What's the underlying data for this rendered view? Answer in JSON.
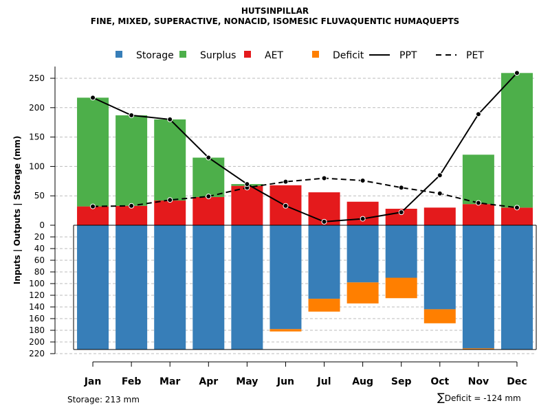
{
  "title": "HUTSINPILLAR",
  "subtitle": "FINE, MIXED, SUPERACTIVE, NONACID, ISOMESIC FLUVAQUENTIC HUMAQUEPTS",
  "storage_note": "Storage: 213 mm",
  "deficit_note": "Deficit = -124 mm",
  "deficit_symbol": "∑",
  "colors": {
    "storage": "#377EB8",
    "surplus": "#4DAF4A",
    "aet": "#E41A1C",
    "deficit": "#FF7F00",
    "grid": "#bbbbbb",
    "line": "#000000"
  },
  "chart_data": {
    "type": "bar",
    "title": "HUTSINPILLAR",
    "subtitle": "FINE, MIXED, SUPERACTIVE, NONACID, ISOMESIC FLUVAQUENTIC HUMAQUEPTS",
    "ylabel": "Inputs | Outputs | Storage    (mm)",
    "xlabel": "",
    "categories": [
      "Jan",
      "Feb",
      "Mar",
      "Apr",
      "May",
      "Jun",
      "Jul",
      "Aug",
      "Sep",
      "Oct",
      "Nov",
      "Dec"
    ],
    "upper_ylim": [
      0,
      270
    ],
    "upper_ticks": [
      0,
      50,
      100,
      150,
      200,
      250
    ],
    "lower_ylim": [
      0,
      220
    ],
    "lower_ticks": [
      20,
      40,
      60,
      80,
      100,
      120,
      140,
      160,
      180,
      200,
      220
    ],
    "legend": [
      {
        "label": "Storage",
        "kind": "box",
        "color": "#377EB8"
      },
      {
        "label": "Surplus",
        "kind": "box",
        "color": "#4DAF4A"
      },
      {
        "label": "AET",
        "kind": "box",
        "color": "#E41A1C"
      },
      {
        "label": "Deficit",
        "kind": "box",
        "color": "#FF7F00"
      },
      {
        "label": "PPT",
        "kind": "solid",
        "color": "#000000"
      },
      {
        "label": "PET",
        "kind": "dashed",
        "color": "#000000"
      }
    ],
    "series": [
      {
        "name": "AET",
        "values": [
          32,
          33,
          42,
          48,
          67,
          68,
          56,
          40,
          28,
          30,
          36,
          30
        ]
      },
      {
        "name": "Surplus",
        "values": [
          185,
          154,
          138,
          67,
          3,
          0,
          0,
          0,
          0,
          0,
          84,
          229
        ]
      },
      {
        "name": "Storage",
        "values": [
          213,
          213,
          213,
          213,
          213,
          178,
          126,
          98,
          90,
          144,
          211,
          213
        ]
      },
      {
        "name": "Deficit",
        "values": [
          0,
          0,
          0,
          0,
          0,
          4,
          22,
          36,
          35,
          24,
          2,
          0
        ]
      },
      {
        "name": "PPT",
        "values": [
          217,
          187,
          180,
          115,
          70,
          33,
          6,
          11,
          22,
          85,
          189,
          259
        ]
      },
      {
        "name": "PET",
        "values": [
          32,
          33,
          43,
          49,
          64,
          74,
          80,
          76,
          64,
          54,
          38,
          30
        ]
      }
    ]
  }
}
